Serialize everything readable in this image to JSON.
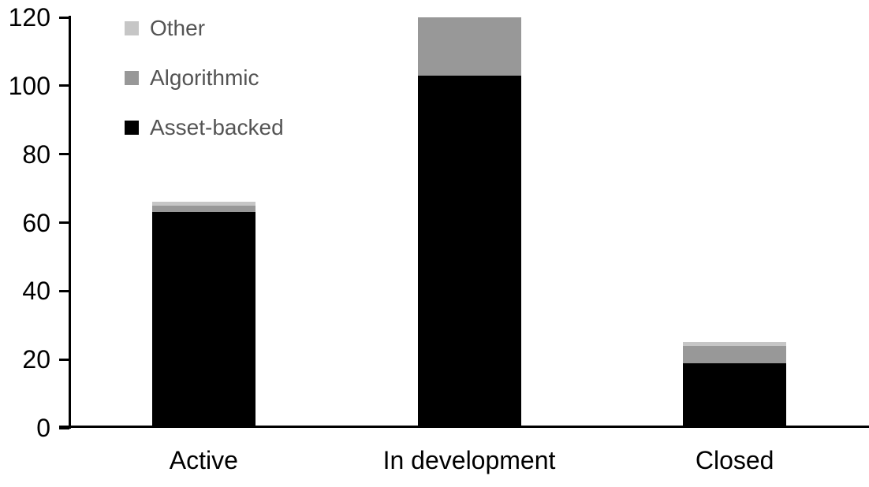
{
  "chart_data": {
    "type": "bar",
    "stacked": true,
    "title": "",
    "xlabel": "",
    "ylabel": "",
    "categories": [
      "Active",
      "In development",
      "Closed"
    ],
    "series": [
      {
        "name": "Asset-backed",
        "color": "#000000",
        "values": [
          63,
          103,
          19
        ]
      },
      {
        "name": "Algorithmic",
        "color": "#989898",
        "values": [
          2,
          17,
          5
        ]
      },
      {
        "name": "Other",
        "color": "#c6c6c6",
        "values": [
          1,
          0,
          1
        ]
      }
    ],
    "totals": [
      66,
      120,
      25
    ],
    "ylim": [
      0,
      120
    ],
    "yticks": [
      0,
      20,
      40,
      60,
      80,
      100,
      120
    ],
    "grid": false,
    "legend": {
      "position": "top-left-inside",
      "order_top_to_bottom": [
        "Other",
        "Algorithmic",
        "Asset-backed"
      ]
    },
    "colors": {
      "axis": "#000000",
      "tick_label": "#000000",
      "legend_text": "#545454",
      "background": "#ffffff"
    }
  }
}
